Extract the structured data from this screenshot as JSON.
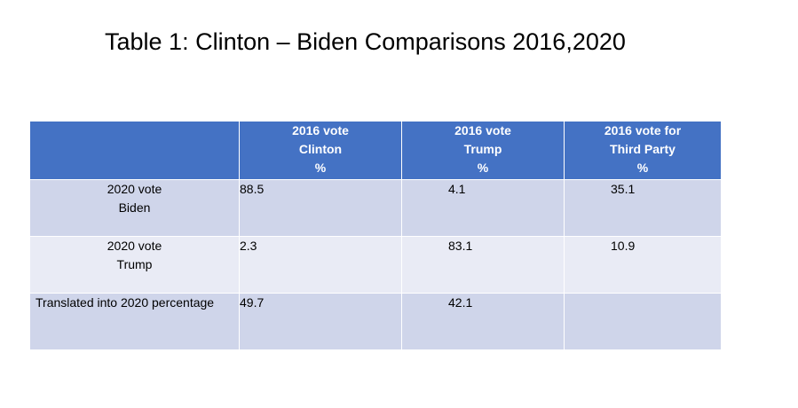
{
  "title": "Table 1: Clinton – Biden Comparisons 2016,2020",
  "table": {
    "header": [
      {
        "line1": "",
        "line2": "",
        "line3": ""
      },
      {
        "line1": "2016 vote",
        "line2": "Clinton",
        "line3": "%"
      },
      {
        "line1": "2016 vote",
        "line2": "Trump",
        "line3": "%"
      },
      {
        "line1": "2016 vote for",
        "line2": "Third Party",
        "line3": "%"
      }
    ],
    "rows": [
      {
        "label1": "2020 vote",
        "label2": "Biden",
        "values": [
          "88.5",
          "4.1",
          "35.1"
        ]
      },
      {
        "label1": "2020 vote",
        "label2": "Trump",
        "values": [
          "2.3",
          "83.1",
          "10.9"
        ]
      },
      {
        "label1": "Translated into 2020 percentage",
        "label2": "",
        "values": [
          "49.7",
          "42.1",
          ""
        ]
      }
    ]
  },
  "colors": {
    "header_bg": "#4472c4",
    "row_dark": "#cfd5ea",
    "row_light": "#e9ebf5"
  }
}
